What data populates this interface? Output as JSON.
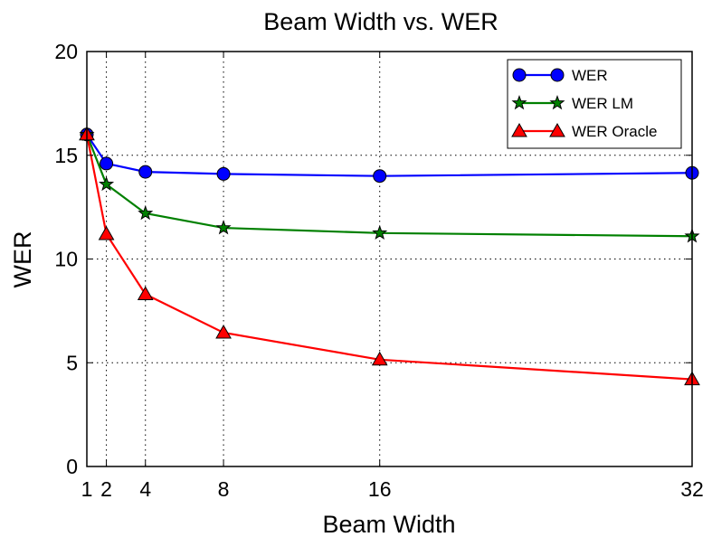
{
  "chart_data": {
    "type": "line",
    "title": "Beam Width vs. WER",
    "xlabel": "Beam Width",
    "ylabel": "WER",
    "x": [
      1,
      2,
      4,
      8,
      16,
      32
    ],
    "xticks": [
      "1",
      "2",
      "4",
      "8",
      "16",
      "32"
    ],
    "xlim": [
      1,
      32
    ],
    "ylim": [
      0,
      20
    ],
    "yticks": [
      "0",
      "5",
      "10",
      "15",
      "20"
    ],
    "yticks_values": [
      0,
      5,
      10,
      15,
      20
    ],
    "grid": true,
    "legend_position": "top-right",
    "series": [
      {
        "name": "WER",
        "values": [
          16.0,
          14.6,
          14.2,
          14.1,
          14.0,
          14.15
        ],
        "color": "#0000ff",
        "marker": "circle"
      },
      {
        "name": "WER LM",
        "values": [
          16.0,
          13.6,
          12.2,
          11.5,
          11.25,
          11.1
        ],
        "color": "#008000",
        "marker": "star"
      },
      {
        "name": "WER Oracle",
        "values": [
          16.0,
          11.2,
          8.3,
          6.45,
          5.15,
          4.2
        ],
        "color": "#ff0000",
        "marker": "triangle"
      }
    ]
  }
}
